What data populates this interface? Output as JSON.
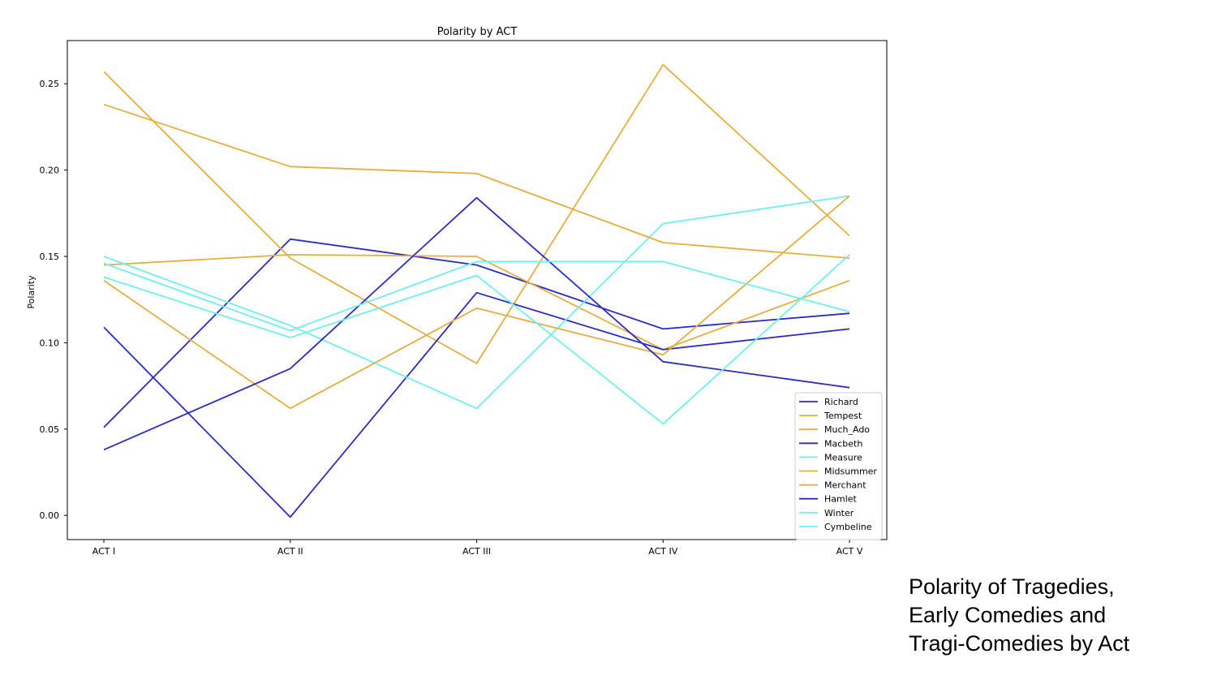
{
  "caption": {
    "lines": [
      "Polarity of Tragedies,",
      "Early Comedies and",
      "Tragi-Comedies by Act"
    ]
  },
  "chart_data": {
    "type": "line",
    "title": "Polarity by ACT",
    "xlabel": "",
    "ylabel": "Polarity",
    "categories": [
      "ACT I",
      "ACT II",
      "ACT III",
      "ACT IV",
      "ACT V"
    ],
    "ylim": [
      -0.014,
      0.275
    ],
    "yticks": [
      0.0,
      0.05,
      0.1,
      0.15,
      0.2,
      0.25
    ],
    "ytick_labels": [
      "0.00",
      "0.05",
      "0.10",
      "0.15",
      "0.20",
      "0.25"
    ],
    "grid": false,
    "legend_position": "lower-right",
    "colors": {
      "tragedy": "#2b2bc7",
      "comedy": "#e6ae3e",
      "tragicomedy": "#6ef0f0"
    },
    "series": [
      {
        "name": "Richard",
        "color": "#2b2bc7",
        "values": [
          0.051,
          0.16,
          0.145,
          0.108,
          0.117
        ]
      },
      {
        "name": "Tempest",
        "color": "#e6ae3e",
        "values": [
          0.257,
          0.149,
          0.088,
          0.261,
          0.162
        ]
      },
      {
        "name": "Much_Ado",
        "color": "#e6ae3e",
        "values": [
          0.145,
          0.151,
          0.15,
          0.096,
          0.136
        ]
      },
      {
        "name": "Macbeth",
        "color": "#2b2bc7",
        "values": [
          0.109,
          -0.001,
          0.129,
          0.096,
          0.108
        ]
      },
      {
        "name": "Measure",
        "color": "#6ef0f0",
        "values": [
          0.15,
          0.11,
          0.062,
          0.169,
          0.185
        ]
      },
      {
        "name": "Midsummer",
        "color": "#e6ae3e",
        "values": [
          0.136,
          0.062,
          0.12,
          0.093,
          0.185
        ]
      },
      {
        "name": "Merchant",
        "color": "#e6ae3e",
        "values": [
          0.238,
          0.202,
          0.198,
          0.158,
          0.149
        ]
      },
      {
        "name": "Hamlet",
        "color": "#2b2bc7",
        "values": [
          0.038,
          0.085,
          0.184,
          0.089,
          0.074
        ]
      },
      {
        "name": "Winter",
        "color": "#6ef0f0",
        "values": [
          0.138,
          0.103,
          0.139,
          0.053,
          0.151
        ]
      },
      {
        "name": "Cymbeline",
        "color": "#6ef0f0",
        "values": [
          0.146,
          0.107,
          0.147,
          0.147,
          0.118
        ]
      }
    ]
  }
}
